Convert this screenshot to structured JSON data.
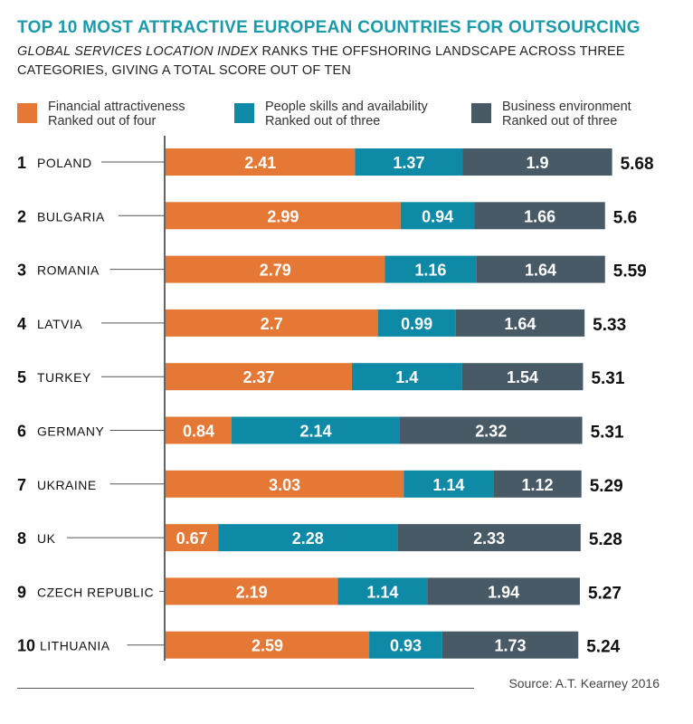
{
  "header": {
    "title": "TOP 10 MOST ATTRACTIVE EUROPEAN COUNTRIES FOR OUTSOURCING",
    "subtitle_italic": "GLOBAL SERVICES LOCATION INDEX",
    "subtitle_rest": " RANKS THE OFFSHORING LANDSCAPE ACROSS THREE CATEGORIES, GIVING A TOTAL SCORE OUT OF TEN"
  },
  "legend": [
    {
      "line1": "Financial attractiveness",
      "line2": "Ranked out of four",
      "color": "#e57834"
    },
    {
      "line1": "People skills and availability",
      "line2": "Ranked out of three",
      "color": "#0e8aa6"
    },
    {
      "line1": "Business environment",
      "line2": "Ranked out of three",
      "color": "#485a66"
    }
  ],
  "source": "Source: A.T. Kearney 2016",
  "chart_data": {
    "type": "bar",
    "orientation": "horizontal",
    "stacked": true,
    "categories": [
      "POLAND",
      "BULGARIA",
      "ROMANIA",
      "LATVIA",
      "TURKEY",
      "GERMANY",
      "UKRAINE",
      "UK",
      "CZECH REPUBLIC",
      "LITHUANIA"
    ],
    "ranks": [
      "1",
      "2",
      "3",
      "4",
      "5",
      "6",
      "7",
      "8",
      "9",
      "10"
    ],
    "series": [
      {
        "name": "Financial attractiveness",
        "color": "#e57834",
        "values": [
          2.41,
          2.99,
          2.79,
          2.7,
          2.37,
          0.84,
          3.03,
          0.67,
          2.19,
          2.59
        ]
      },
      {
        "name": "People skills and availability",
        "color": "#0e8aa6",
        "values": [
          1.37,
          0.94,
          1.16,
          0.99,
          1.4,
          2.14,
          1.14,
          2.28,
          1.14,
          0.93
        ]
      },
      {
        "name": "Business environment",
        "color": "#485a66",
        "values": [
          1.9,
          1.66,
          1.64,
          1.64,
          1.54,
          2.32,
          1.12,
          2.33,
          1.94,
          1.73
        ]
      }
    ],
    "totals": [
      5.68,
      5.6,
      5.59,
      5.33,
      5.31,
      5.31,
      5.29,
      5.28,
      5.27,
      5.24
    ],
    "bar_labels": [
      [
        "2.41",
        "1.37",
        "1.9"
      ],
      [
        "2.99",
        "0.94",
        "1.66"
      ],
      [
        "2.79",
        "1.16",
        "1.64"
      ],
      [
        "2.7",
        "0.99",
        "1.64"
      ],
      [
        "2.37",
        "1.4",
        "1.54"
      ],
      [
        "0.84",
        "2.14",
        "2.32"
      ],
      [
        "3.03",
        "1.14",
        "1.12"
      ],
      [
        "0.67",
        "2.28",
        "2.33"
      ],
      [
        "2.19",
        "1.14",
        "1.94"
      ],
      [
        "2.59",
        "0.93",
        "1.73"
      ]
    ],
    "total_labels": [
      "5.68",
      "5.6",
      "5.59",
      "5.33",
      "5.31",
      "5.31",
      "5.29",
      "5.28",
      "5.27",
      "5.24"
    ],
    "xlim": [
      0,
      5.68
    ]
  }
}
